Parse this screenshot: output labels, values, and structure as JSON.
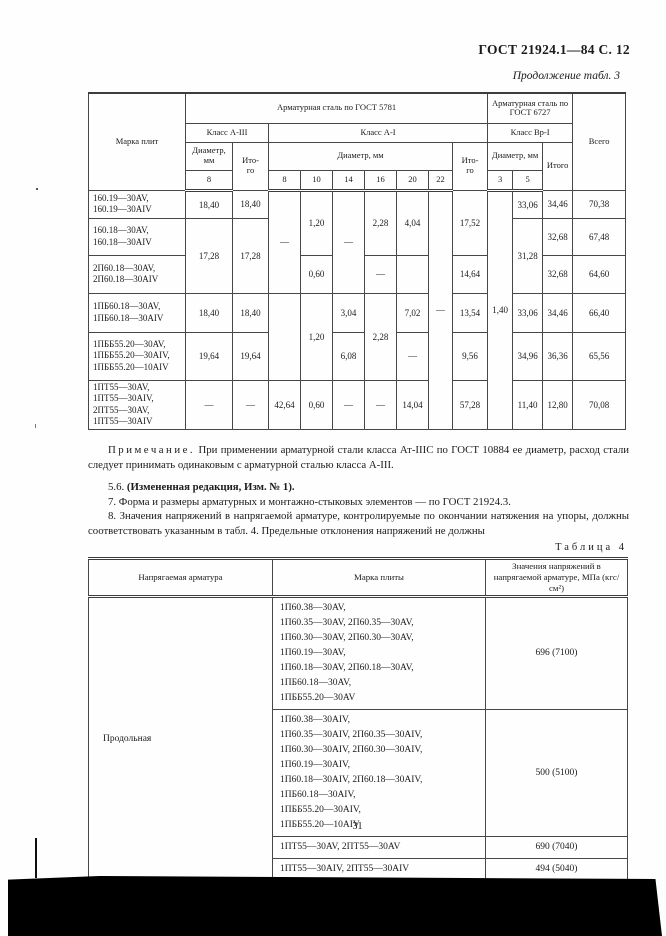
{
  "page": {
    "header_right": "ГОСТ 21924.1—84 С. 12",
    "continuation": "Продолжение табл. 3",
    "page_number": "31"
  },
  "table3": {
    "header": {
      "marka": "Марка плит",
      "gost5781": "Арматурная сталь по ГОСТ 5781",
      "gost6727": "Арматурная сталь по ГОСТ 6727",
      "class_a3": "Класс А-III",
      "class_a1": "Класс А-I",
      "class_vr1": "Класс Вр-I",
      "diam_label": "Диаметр, мм",
      "itogo_hyph": "Ито-\nго",
      "itogo": "Итого",
      "vsego": "Всего",
      "diam_a3": [
        "8"
      ],
      "diam_a1": [
        "8",
        "10",
        "14",
        "16",
        "20",
        "22"
      ],
      "diam_vr1": [
        "3",
        "5"
      ]
    },
    "rows": [
      {
        "cells": [
          {
            "k": "label",
            "t": "160.19—30AV,\n160.19—30AIV"
          },
          {
            "t": "18,40"
          },
          {
            "t": "18,40"
          },
          {
            "t": "—",
            "rs": 3
          },
          {
            "t": "1,20",
            "rs": 2
          },
          {
            "t": "—",
            "rs": 3
          },
          {
            "t": "2,28",
            "rs": 2
          },
          {
            "t": "4,04",
            "rs": 2
          },
          {
            "t": "—",
            "rs": 6
          },
          {
            "t": "17,52",
            "rs": 2
          },
          {
            "t": "1,40",
            "rs": 6
          },
          {
            "t": "33,06"
          },
          {
            "t": "34,46"
          },
          {
            "t": "70,38"
          }
        ]
      },
      {
        "cells": [
          {
            "k": "label",
            "t": "160.18—30AV,\n160.18—30AIV"
          },
          {
            "t": "17,28",
            "rs": 2
          },
          {
            "t": "17,28",
            "rs": 2
          },
          {
            "t": "31,28",
            "rs": 2
          },
          {
            "t": "32,68"
          },
          {
            "t": "67,48"
          }
        ]
      },
      {
        "cells": [
          {
            "k": "label",
            "t": "2П60.18—30AV,\n2П60.18—30AIV"
          },
          {
            "t": "0,60"
          },
          {
            "t": "—"
          },
          {
            "t": ""
          },
          {
            "t": "14,64"
          },
          {
            "t": "32,68"
          },
          {
            "t": "64,60"
          }
        ]
      },
      {
        "cells": [
          {
            "k": "label",
            "t": "1ПБ60.18—30AV,\n1ПБ60.18—30AIV"
          },
          {
            "t": "18,40"
          },
          {
            "t": "18,40"
          },
          {
            "t": "",
            "rs": 2
          },
          {
            "t": "1,20",
            "rs": 2
          },
          {
            "t": "3,04"
          },
          {
            "t": "2,28",
            "rs": 2
          },
          {
            "t": "7,02"
          },
          {
            "t": "13,54"
          },
          {
            "t": "33,06"
          },
          {
            "t": "34,46"
          },
          {
            "t": "66,40"
          }
        ]
      },
      {
        "cells": [
          {
            "k": "label",
            "t": "1ПББ55.20—30AV,\n1ПББ55.20—30AIV,\n1ПББ55.20—10AIV"
          },
          {
            "t": "19,64"
          },
          {
            "t": "19,64"
          },
          {
            "t": "6,08"
          },
          {
            "t": "—"
          },
          {
            "t": "9,56"
          },
          {
            "t": "34,96"
          },
          {
            "t": "36,36"
          },
          {
            "t": "65,56"
          }
        ]
      },
      {
        "cells": [
          {
            "k": "label",
            "t": "1ПТ55—30AV,\n1ПТ55—30AIV,\n2ПТ55—30AV,\n1ПТ55—30AIV"
          },
          {
            "t": "—"
          },
          {
            "t": "—"
          },
          {
            "t": "42,64"
          },
          {
            "t": "0,60"
          },
          {
            "t": "—"
          },
          {
            "t": "—"
          },
          {
            "t": "14,04"
          },
          {
            "t": "57,28"
          },
          {
            "t": "11,40"
          },
          {
            "t": "12,80"
          },
          {
            "t": "70,08"
          }
        ]
      }
    ]
  },
  "notes": {
    "note_label": "Примечание.",
    "note_text": "При применении арматурной стали класса Ат-IIIС по ГОСТ 10884 ее диаметр, расход стали следует принимать одинаковым с арматурной сталью класса А-III.",
    "item56_prefix": "5.6. ",
    "item56_bold": "(Измененная редакция, Изм. № 1).",
    "item7": "7. Форма и размеры арматурных и монтажно-стыковых элементов — по ГОСТ 21924.3.",
    "item8": "8. Значения напряжений в напрягаемой арматуре, контролируемые по окончании натяжения на упоры, должны соответствовать указанным в табл. 4. Предельные отклонения напряжений не должны"
  },
  "table4": {
    "caption": "Таблица 4",
    "header": [
      "Напрягаемая арматура",
      "Марка плиты",
      "Значения напряжений в напрягаемой арматуре, МПа (кгс/см²)"
    ],
    "rows": [
      {
        "cells": [
          {
            "k": "arm",
            "t": "Продольная",
            "rs": 4
          },
          {
            "k": "label",
            "t": "1П60.38—30AV,\n1П60.35—30AV, 2П60.35—30AV,\n1П60.30—30AV, 2П60.30—30AV,\n1П60.19—30AV,\n1П60.18—30AV, 2П60.18—30AV,\n1ПБ60.18—30AV,\n1ПББ55.20—30AV"
          },
          {
            "t": "696 (7100)"
          }
        ]
      },
      {
        "cells": [
          {
            "k": "label",
            "t": "1П60.38—30AIV,\n1П60.35—30AIV, 2П60.35—30AIV,\n1П60.30—30AIV, 2П60.30—30AIV,\n1П60.19—30AIV,\n1П60.18—30AIV, 2П60.18—30AIV,\n1ПБ60.18—30AIV,\n1ПББ55.20—30AIV,\n1ПББ55.20—10AIV"
          },
          {
            "t": "500 (5100)"
          }
        ]
      },
      {
        "cells": [
          {
            "k": "label",
            "t": "1ПТ55—30AV, 2ПТ55—30AV"
          },
          {
            "t": "690 (7040)"
          }
        ]
      },
      {
        "cells": [
          {
            "k": "label",
            "t": "1ПТ55—30AIV, 2ПТ55—30AIV"
          },
          {
            "t": "494 (5040)"
          }
        ]
      }
    ]
  }
}
